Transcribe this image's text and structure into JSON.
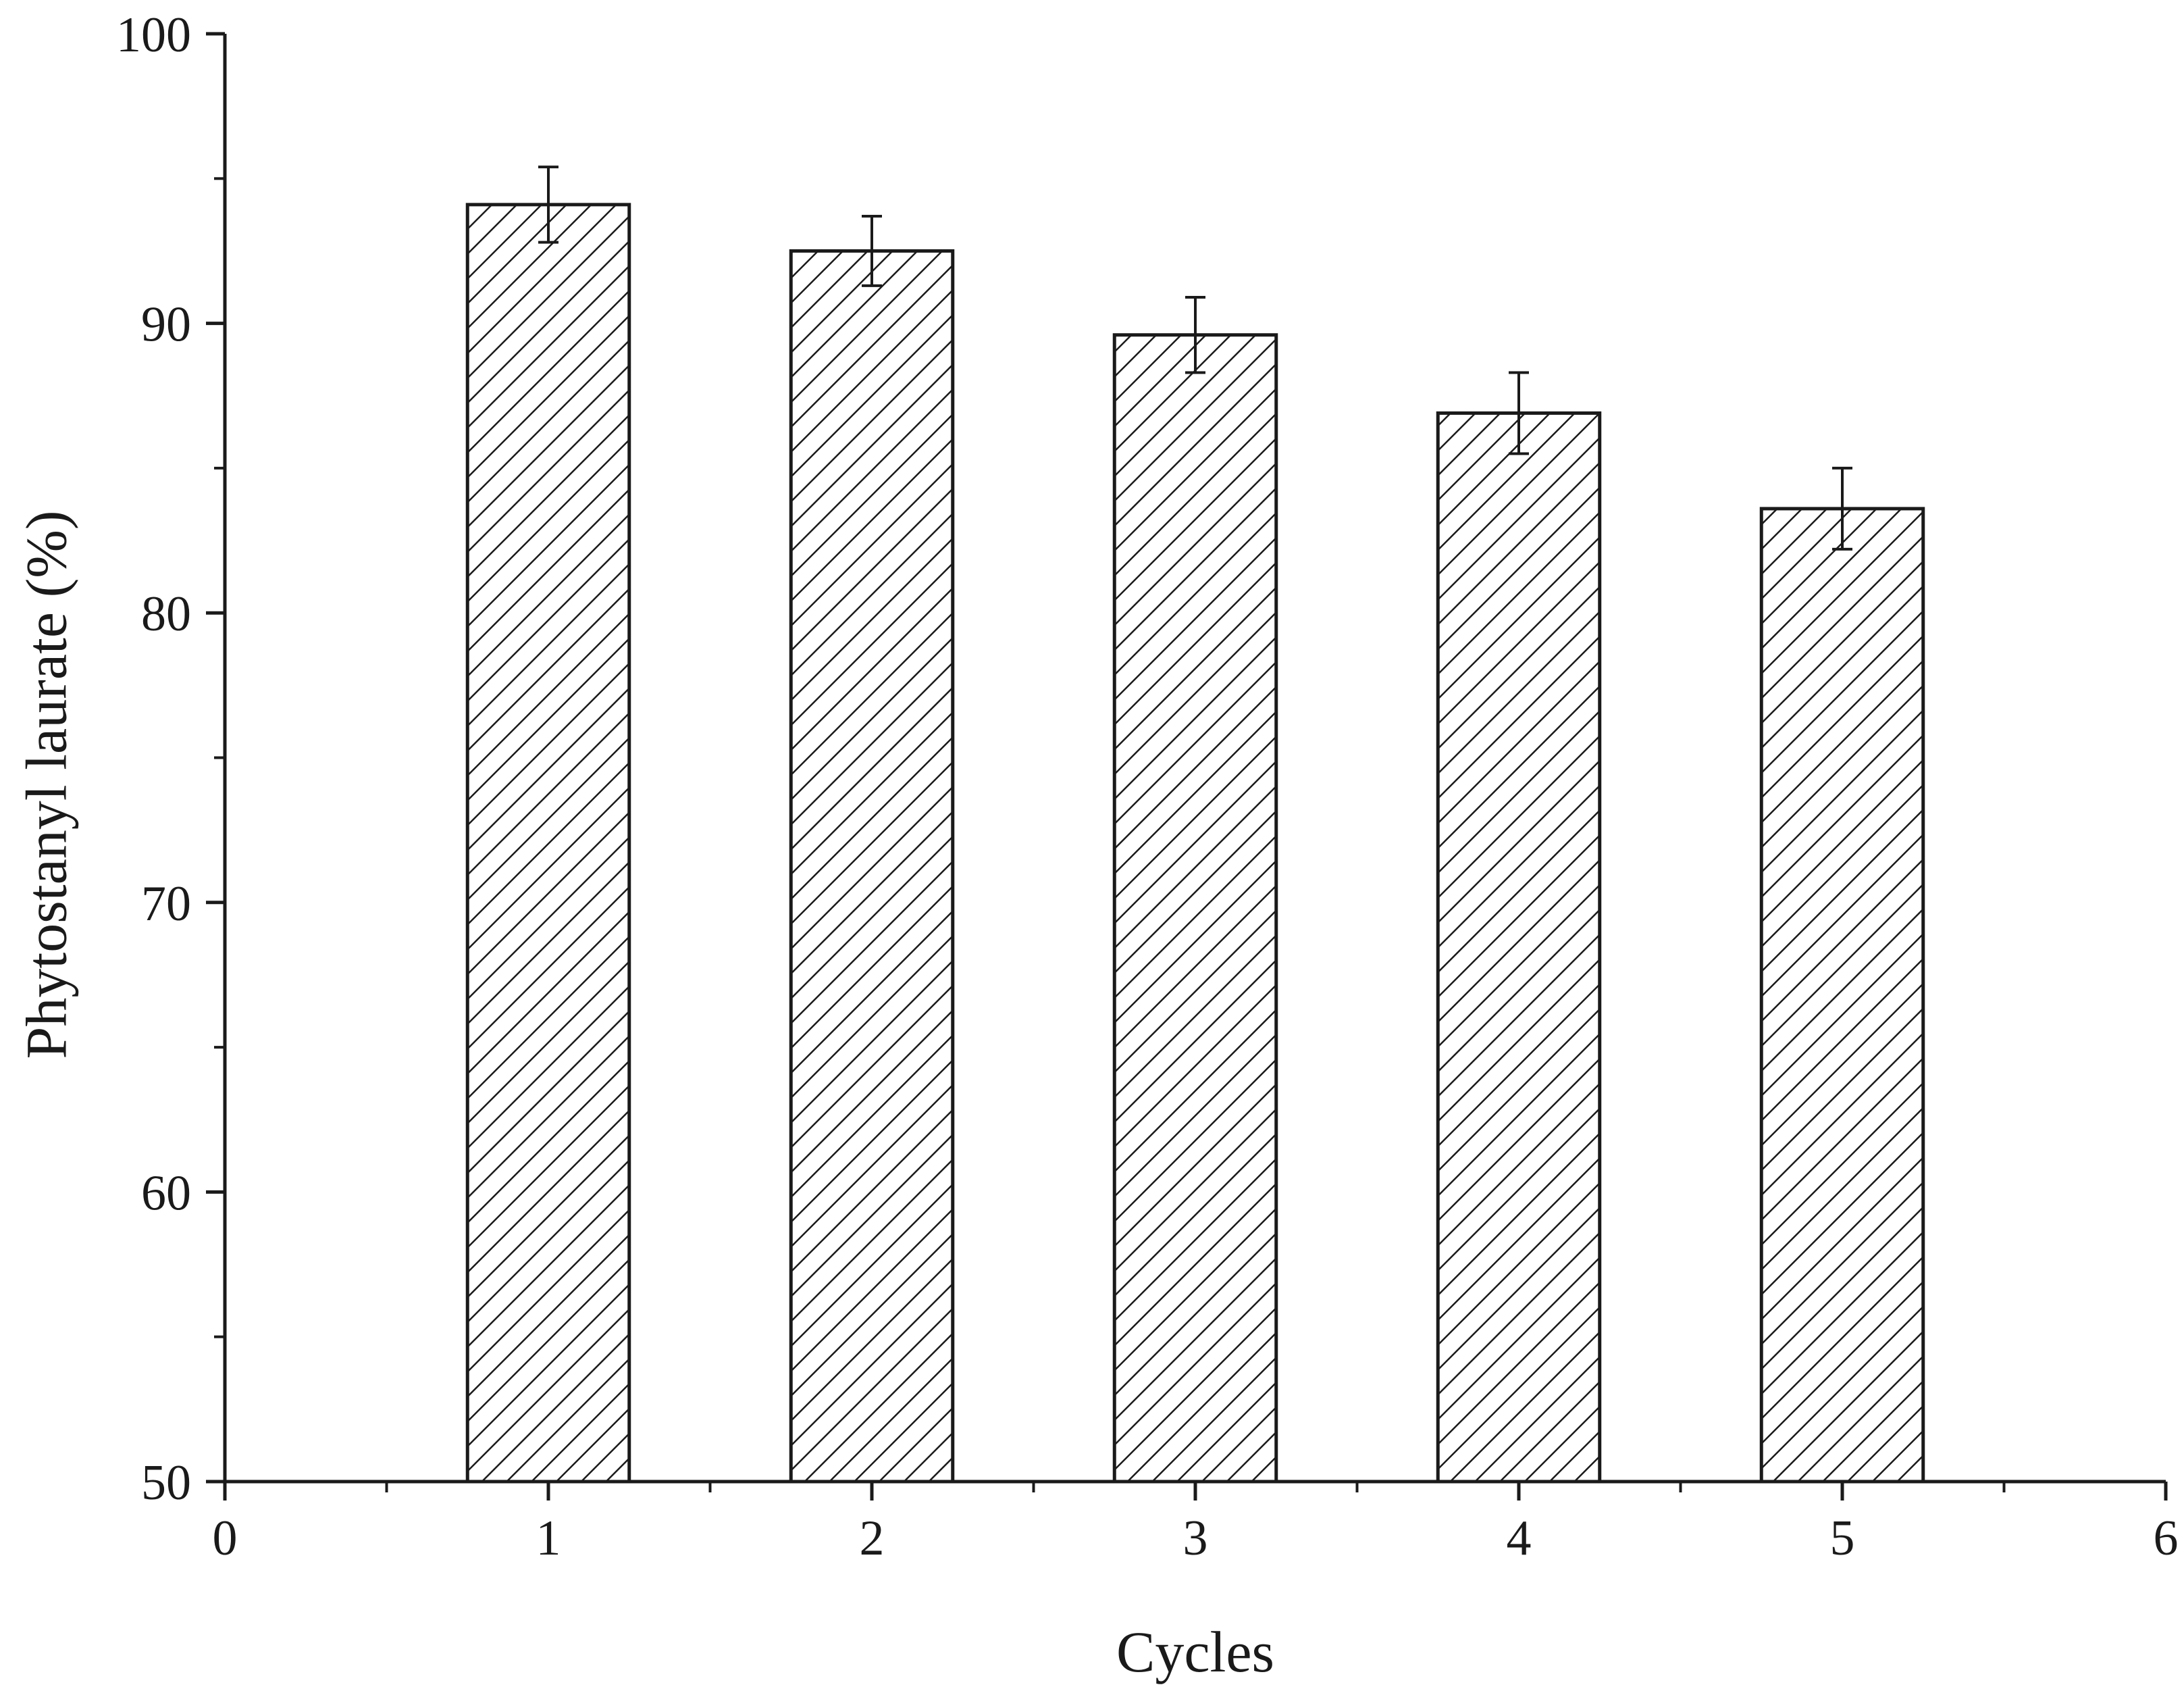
{
  "chart_data": {
    "type": "bar",
    "title": "",
    "xlabel": "Cycles",
    "ylabel": "Phytostanyl laurate (%)",
    "xlim": [
      0,
      6
    ],
    "ylim": [
      50,
      100
    ],
    "x_ticks": [
      "0",
      "1",
      "2",
      "3",
      "4",
      "5",
      "6"
    ],
    "y_ticks": [
      "50",
      "60",
      "70",
      "80",
      "90",
      "100"
    ],
    "x": [
      1,
      2,
      3,
      4,
      5
    ],
    "values": [
      94.1,
      92.5,
      89.6,
      86.9,
      83.6
    ],
    "errors": [
      1.3,
      1.2,
      1.3,
      1.4,
      1.4
    ],
    "bar_fill": "diagonal-hatch",
    "bar_color": "#1a1a1a",
    "grid": false,
    "legend": "none"
  }
}
